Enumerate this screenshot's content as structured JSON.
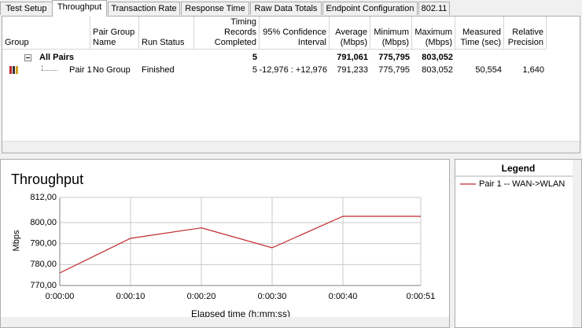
{
  "tabs": [
    "Test Setup",
    "Throughput",
    "Transaction Rate",
    "Response Time",
    "Raw Data Totals",
    "Endpoint Configuration",
    "802.11"
  ],
  "table": {
    "headers": [
      "Group",
      "Pair Group Name",
      "Run Status",
      "Timing Records Completed",
      "95% Confidence Interval",
      "Average (Mbps)",
      "Minimum (Mbps)",
      "Maximum (Mbps)",
      "Measured Time (sec)",
      "Relative Precision"
    ],
    "rows": [
      [
        "All Pairs",
        null,
        null,
        "5",
        null,
        "791,061",
        "775,795",
        "803,052",
        null,
        null
      ],
      [
        "Pair 1",
        "No Group",
        "Finished",
        "5",
        "-12,976 : +12,976",
        "791,233",
        "775,795",
        "803,052",
        "50,554",
        "1,640"
      ]
    ]
  },
  "chart_data": {
    "type": "line",
    "title": "Throughput",
    "x_label": "Elapsed time (h:mm:ss)",
    "y_label": "Mbps",
    "x": [
      0,
      10,
      20,
      30,
      40,
      51
    ],
    "series": [
      {
        "name": "Pair 1 -- WAN->WLAN",
        "color": "#c0282d",
        "values": [
          776,
          792.5,
          797.5,
          788,
          803,
          803
        ]
      }
    ],
    "xlim": [
      0,
      51
    ],
    "xticks": [
      {
        "value": 0,
        "label": "0:00:00"
      },
      {
        "value": 10,
        "label": "0:00:10"
      },
      {
        "value": 20,
        "label": "0:00:20"
      },
      {
        "value": 30,
        "label": "0:00:30"
      },
      {
        "value": 40,
        "label": "0:00:40"
      },
      {
        "value": 51,
        "label": "0:00:51"
      }
    ],
    "ylim": [
      770,
      812
    ],
    "yticks": [
      {
        "value": 770,
        "label": "770,00"
      },
      {
        "value": 780,
        "label": "780,00"
      },
      {
        "value": 790,
        "label": "790,00"
      },
      {
        "value": 800,
        "label": "800,00"
      },
      {
        "value": 812,
        "label": "812,00"
      }
    ],
    "grid": true,
    "legend_title": "Legend"
  }
}
